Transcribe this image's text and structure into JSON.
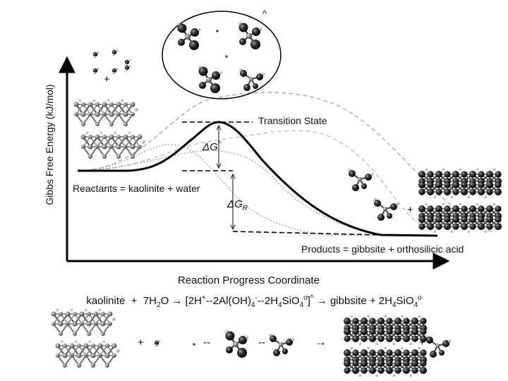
{
  "axes": {
    "y_label": "Gibbs Free Energy (kJ/mol)",
    "x_label": "Reaction Progress Coordinate"
  },
  "labels": {
    "transition_state": "Transition State",
    "reactants": "Reactants = kaolinite + water",
    "products": "Products = gibbsite + orthosilicic acid",
    "delta_g_activation": {
      "symbol": "ΔG",
      "sup": "^"
    },
    "delta_g_reaction": {
      "symbol": "ΔG",
      "sub": "R"
    },
    "bubble_mark": "^",
    "plus_sign": "+"
  },
  "equation": {
    "kaolinite": "kaolinite",
    "plus": "+",
    "water_coef": "7H",
    "water_sub": "2",
    "water_rest": "O",
    "arrow": "→",
    "complex_open": "[2H",
    "complex_sup1": "+",
    "complex_mid1": "--2Al(OH)",
    "complex_sub1": "4",
    "complex_sup2": "-",
    "complex_mid2": "--2H",
    "complex_sub2": "4",
    "complex_mid3": "SiO",
    "complex_sub3": "4",
    "complex_sup3": "o",
    "complex_close": "]",
    "complex_sup4": "^",
    "gibbsite": "gibbsite",
    "acid_coef": "2H",
    "acid_sub1": "4",
    "acid_mid": "SiO",
    "acid_sub2": "4",
    "acid_sup": "o"
  },
  "bottom_row": {
    "plus1": "+",
    "dash1": "--",
    "dash2": "--",
    "arrow": "→",
    "plus2": "+"
  }
}
